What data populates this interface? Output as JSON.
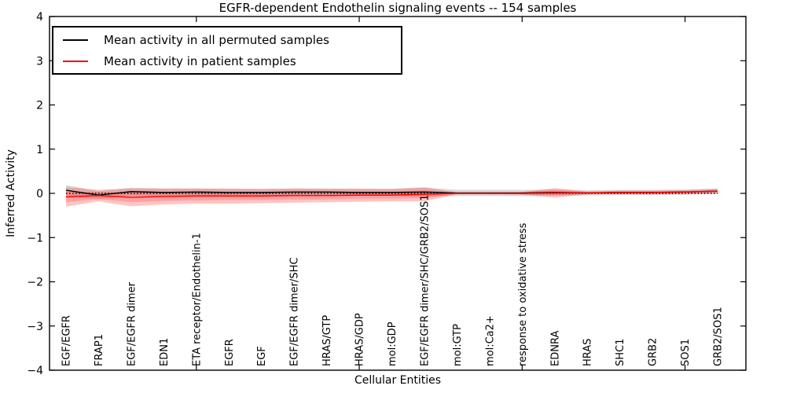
{
  "chart_data": {
    "type": "line",
    "title": "EGFR-dependent Endothelin signaling events -- 154 samples",
    "xlabel": "Cellular Entities",
    "ylabel": "Inferred Activity",
    "ylim": [
      -4,
      4
    ],
    "yticks": [
      -4,
      -3,
      -2,
      -1,
      0,
      1,
      2,
      3,
      4
    ],
    "xtick_category_indices": [
      4,
      9,
      14,
      19
    ],
    "grid": false,
    "legend_position": "upper left",
    "categories": [
      "EGF/EGFR",
      "FRAP1",
      "EGF/EGFR dimer",
      "EDN1",
      "ETA receptor/Endothelin-1",
      "EGFR",
      "EGF",
      "EGF/EGFR dimer/SHC",
      "HRAS/GTP",
      "HRAS/GDP",
      "mol:GDP",
      "EGF/EGFR dimer/SHC/GRB2/SOS1",
      "mol:GTP",
      "mol:Ca2+",
      "response to oxidative stress",
      "EDNRA",
      "HRAS",
      "SHC1",
      "GRB2",
      "SOS1",
      "GRB2/SOS1"
    ],
    "series": [
      {
        "name": "Mean activity in all permuted samples",
        "color": "#000000",
        "values": [
          0.07,
          -0.04,
          0.04,
          0.02,
          0.03,
          0.02,
          0.02,
          0.03,
          0.03,
          0.02,
          0.02,
          0.03,
          0.01,
          0.01,
          0.01,
          0.02,
          0.01,
          0.02,
          0.02,
          0.03,
          0.05
        ]
      },
      {
        "name": "Mean activity in patient samples",
        "color": "#ff0000",
        "values": [
          -0.08,
          -0.05,
          -0.09,
          -0.07,
          -0.06,
          -0.06,
          -0.06,
          -0.05,
          -0.05,
          -0.04,
          -0.04,
          -0.02,
          0.0,
          0.0,
          0.0,
          0.01,
          0.01,
          0.02,
          0.02,
          0.03,
          0.05
        ]
      }
    ],
    "bands": [
      {
        "name": "permuted-samples-std-band",
        "center_series": 0,
        "color": "rgba(120,120,120,0.28)",
        "half_widths": [
          0.12,
          0.09,
          0.09,
          0.09,
          0.08,
          0.08,
          0.08,
          0.08,
          0.08,
          0.08,
          0.08,
          0.1,
          0.07,
          0.07,
          0.07,
          0.07,
          0.06,
          0.06,
          0.06,
          0.06,
          0.06
        ]
      },
      {
        "name": "patient-samples-std-band-outer",
        "center_series": 1,
        "color": "rgba(255,60,60,0.30)",
        "half_widths": [
          0.22,
          0.13,
          0.2,
          0.18,
          0.17,
          0.17,
          0.16,
          0.16,
          0.15,
          0.15,
          0.14,
          0.16,
          0.02,
          0.02,
          0.03,
          0.11,
          0.03,
          0.04,
          0.04,
          0.04,
          0.05
        ]
      },
      {
        "name": "patient-samples-std-band-inner",
        "center_series": 1,
        "color": "rgba(255,60,60,0.25)",
        "half_widths": [
          0.12,
          0.08,
          0.11,
          0.1,
          0.1,
          0.09,
          0.09,
          0.09,
          0.09,
          0.08,
          0.08,
          0.09,
          0.012,
          0.012,
          0.02,
          0.06,
          0.02,
          0.025,
          0.025,
          0.025,
          0.03
        ]
      }
    ],
    "zero_line": {
      "y": 0,
      "color": "#000000",
      "style": "dotted"
    }
  }
}
